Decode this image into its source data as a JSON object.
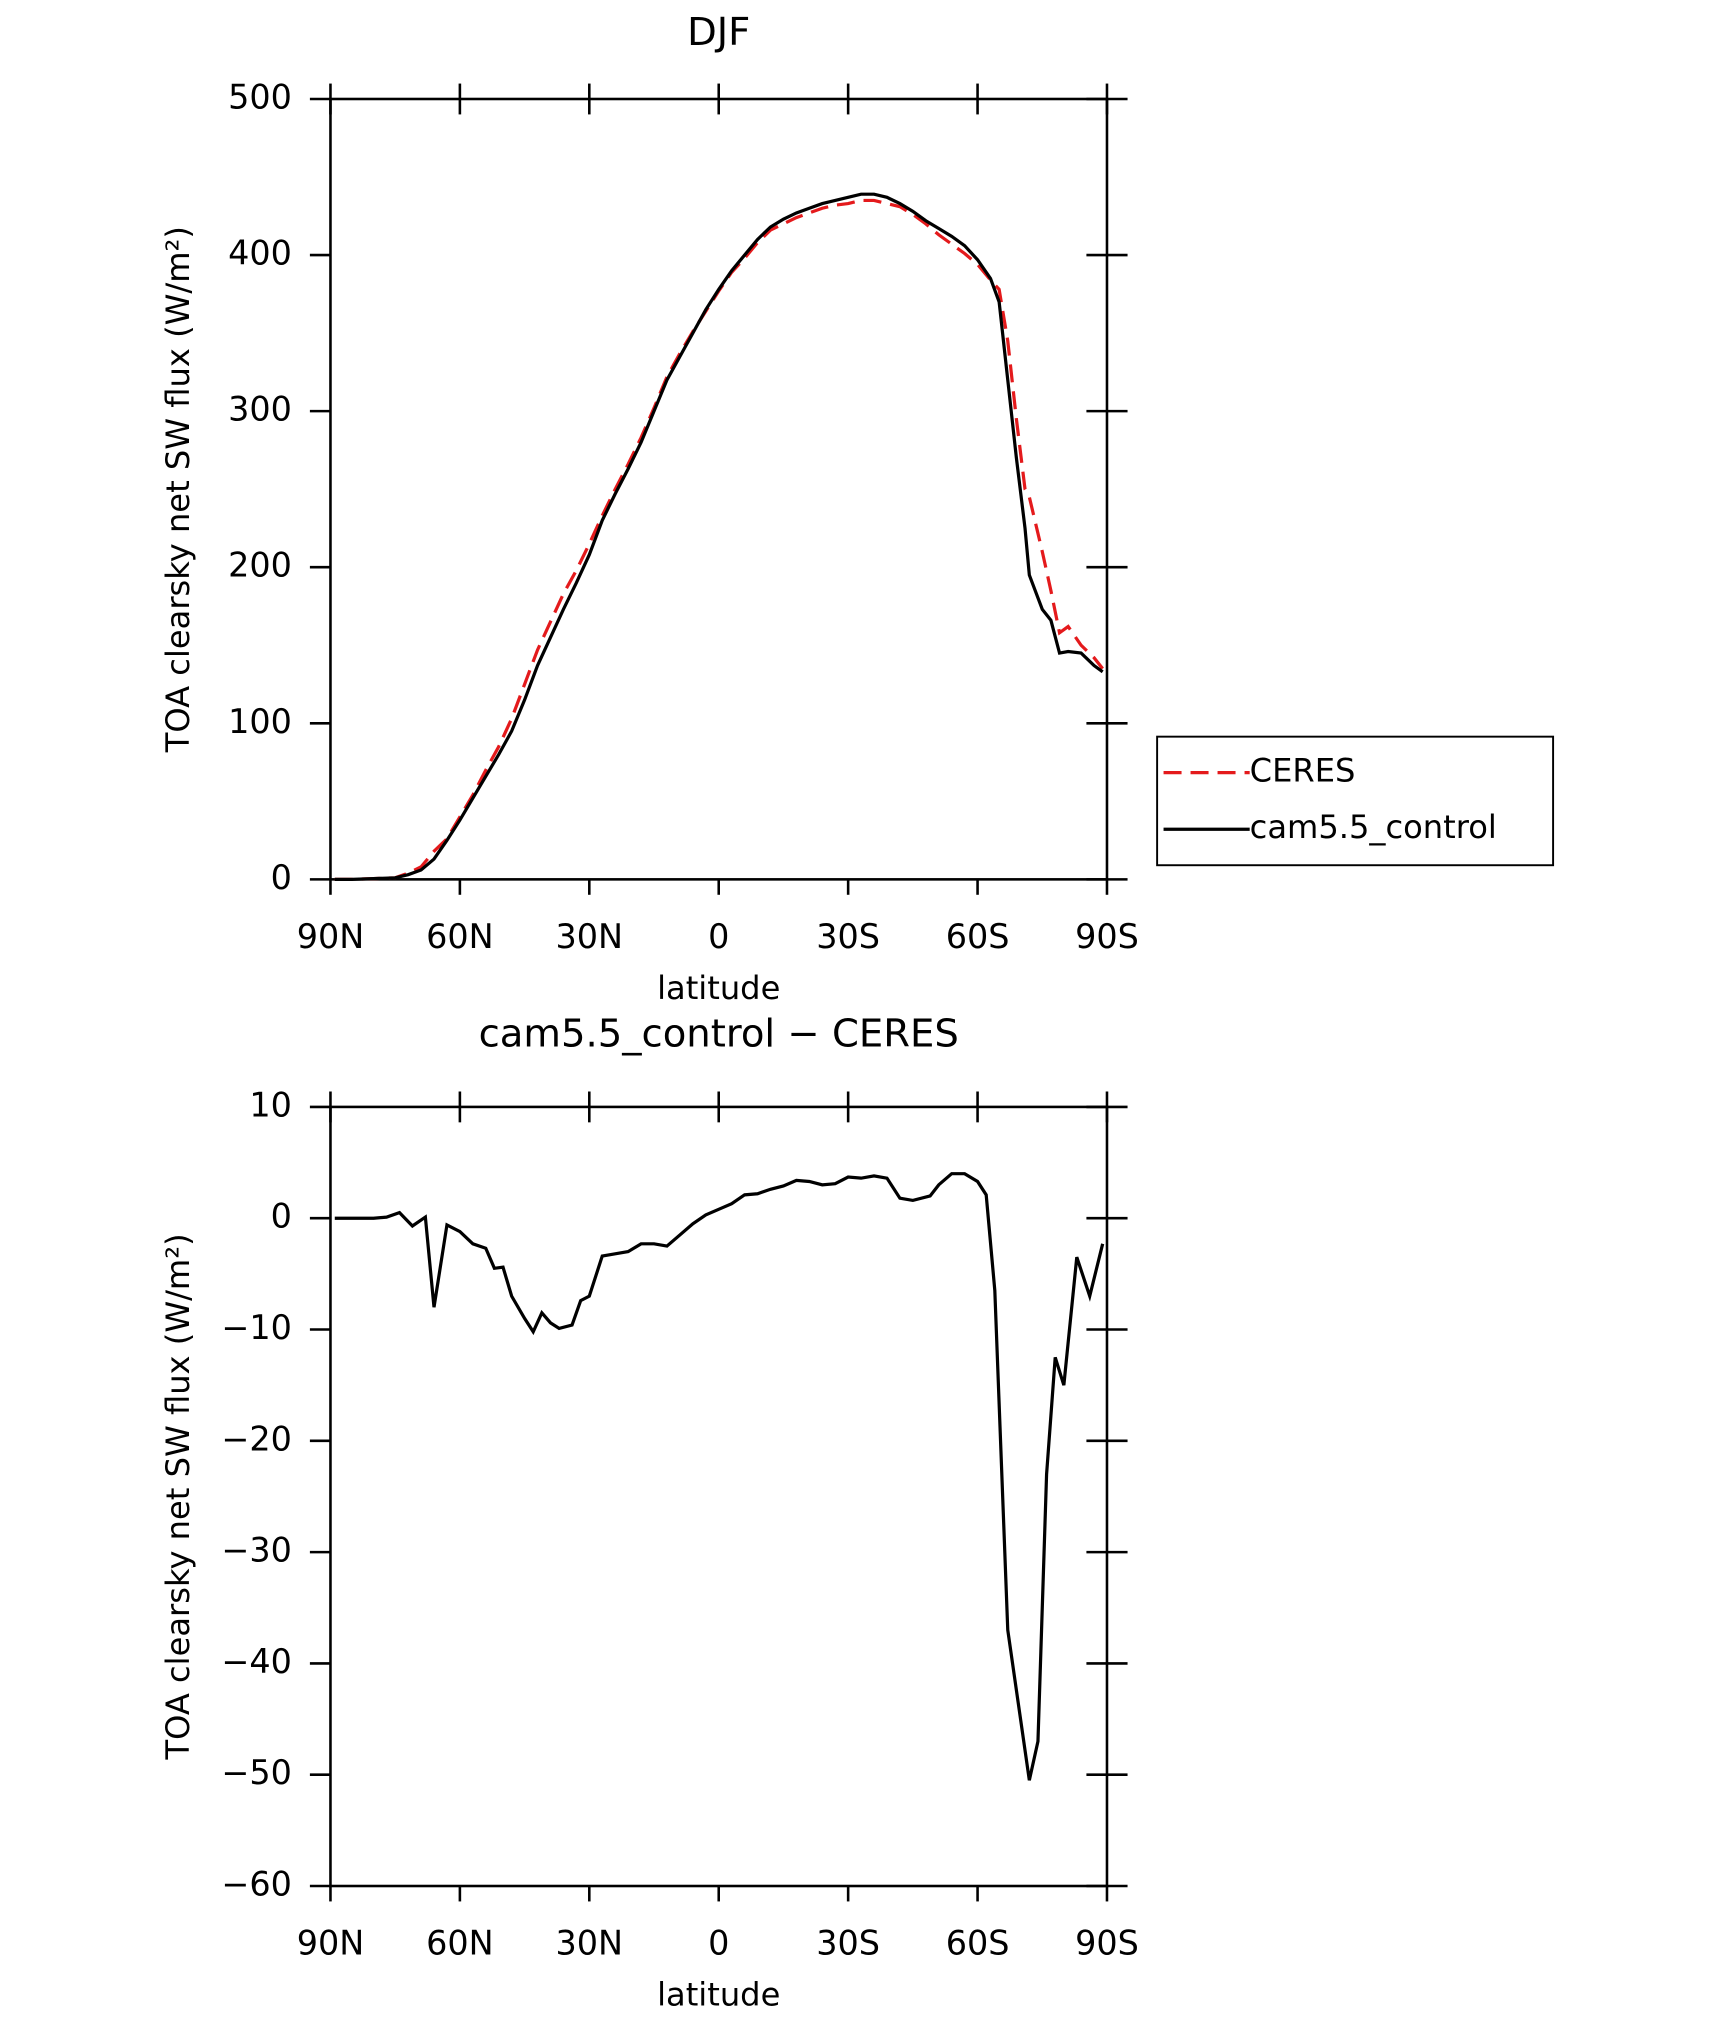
{
  "chart_data": [
    {
      "type": "line",
      "title": "DJF",
      "xlabel": "latitude",
      "ylabel": "TOA clearsky net SW flux (W/m²)",
      "x": [
        89,
        85,
        80,
        75,
        72,
        69,
        66,
        63,
        60,
        57,
        54,
        51,
        48,
        45,
        42,
        39,
        36,
        33,
        30,
        27,
        24,
        21,
        18,
        15,
        12,
        9,
        6,
        3,
        0,
        -3,
        -6,
        -9,
        -12,
        -15,
        -18,
        -21,
        -24,
        -27,
        -30,
        -33,
        -36,
        -39,
        -42,
        -45,
        -48,
        -51,
        -54,
        -57,
        -60,
        -63,
        -65,
        -67,
        -69,
        -71,
        -72,
        -75,
        -77,
        -79,
        -81,
        -84,
        -87,
        -89
      ],
      "xlim": [
        90,
        -90
      ],
      "xticks": [
        {
          "value": 90,
          "label": "90N"
        },
        {
          "value": 60,
          "label": "60N"
        },
        {
          "value": 30,
          "label": "30N"
        },
        0,
        {
          "value": -30,
          "label": "30S"
        },
        {
          "value": -60,
          "label": "60S"
        },
        {
          "value": -90,
          "label": "90S"
        }
      ],
      "ylim": [
        0,
        500
      ],
      "yticks": [
        0,
        100,
        200,
        300,
        400,
        500
      ],
      "legend": "right",
      "series": [
        {
          "name": "CERES",
          "color": "#e41a1c",
          "dash": true,
          "values": [
            0,
            0,
            0.5,
            1,
            4,
            8,
            18,
            26,
            40,
            54,
            70,
            85,
            103,
            125,
            147,
            165,
            183,
            198,
            215,
            233,
            250,
            266,
            283,
            302,
            322,
            337,
            351,
            364,
            377,
            389,
            398,
            408,
            416,
            420,
            424,
            427,
            430,
            432,
            433,
            435,
            435,
            433,
            431,
            426,
            420,
            413,
            407,
            401,
            394,
            384,
            378,
            345,
            295,
            250,
            245,
            210,
            185,
            158,
            162,
            150,
            142,
            135
          ]
        },
        {
          "name": "cam5.5_control",
          "color": "#000000",
          "dash": false,
          "values": [
            0,
            0,
            0.5,
            1,
            3,
            6,
            13,
            25,
            38,
            52,
            66,
            80,
            95,
            115,
            137,
            155,
            173,
            190,
            208,
            230,
            247,
            263,
            280,
            300,
            320,
            335,
            350,
            365,
            378,
            390,
            400,
            410,
            418,
            423,
            427,
            430,
            433,
            435,
            437,
            439,
            439,
            437,
            433,
            428,
            422,
            417,
            412,
            406,
            397,
            385,
            370,
            320,
            270,
            225,
            195,
            173,
            166,
            145,
            146,
            145,
            137,
            133
          ]
        }
      ]
    },
    {
      "type": "line",
      "title": "cam5.5_control − CERES",
      "xlabel": "latitude",
      "ylabel": "TOA clearsky net SW flux (W/m²)",
      "x": [
        89,
        85,
        80,
        77,
        74,
        71,
        68,
        66,
        63,
        60,
        57,
        54,
        52,
        50,
        48,
        45,
        43,
        41,
        39,
        37,
        34,
        32,
        30,
        27,
        24,
        21,
        18,
        15,
        12,
        9,
        6,
        3,
        0,
        -3,
        -6,
        -9,
        -12,
        -15,
        -18,
        -21,
        -24,
        -27,
        -30,
        -33,
        -36,
        -39,
        -42,
        -45,
        -49,
        -51,
        -54,
        -57,
        -60,
        -62,
        -64,
        -67,
        -72,
        -74,
        -76,
        -78,
        -80,
        -83,
        -86,
        -89
      ],
      "xlim": [
        90,
        -90
      ],
      "xticks": [
        {
          "value": 90,
          "label": "90N"
        },
        {
          "value": 60,
          "label": "60N"
        },
        {
          "value": 30,
          "label": "30N"
        },
        0,
        {
          "value": -30,
          "label": "30S"
        },
        {
          "value": -60,
          "label": "60S"
        },
        {
          "value": -90,
          "label": "90S"
        }
      ],
      "ylim": [
        -60,
        10
      ],
      "yticks": [
        {
          "value": -60,
          "label": "−60"
        },
        {
          "value": -50,
          "label": "−50"
        },
        {
          "value": -40,
          "label": "−40"
        },
        {
          "value": -30,
          "label": "−30"
        },
        {
          "value": -20,
          "label": "−20"
        },
        {
          "value": -10,
          "label": "−10"
        },
        0,
        10
      ],
      "series": [
        {
          "color": "#000000",
          "dash": false,
          "values": [
            0,
            0,
            0,
            0.1,
            0.5,
            -0.7,
            0.1,
            -8,
            -0.6,
            -1.2,
            -2.3,
            -2.7,
            -4.5,
            -4.4,
            -7,
            -9,
            -10.2,
            -8.5,
            -9.4,
            -9.9,
            -9.6,
            -7.4,
            -7,
            -3.4,
            -3.2,
            -3,
            -2.3,
            -2.3,
            -2.5,
            -1.5,
            -0.5,
            0.3,
            0.8,
            1.3,
            2.1,
            2.2,
            2.6,
            2.9,
            3.4,
            3.3,
            3,
            3.1,
            3.7,
            3.6,
            3.8,
            3.6,
            1.8,
            1.6,
            2,
            3,
            4,
            4,
            3.3,
            2.1,
            -6.5,
            -37,
            -50.5,
            -47,
            -23,
            -12.5,
            -15,
            -3.5,
            -7,
            -2.3
          ]
        }
      ]
    }
  ]
}
